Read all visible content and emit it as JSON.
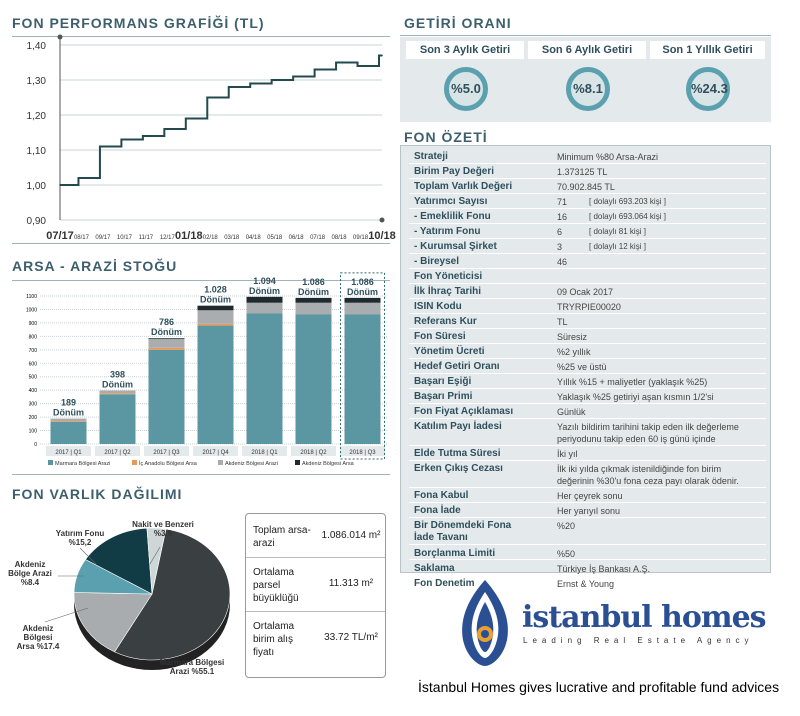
{
  "performance": {
    "title": "FON PERFORMANS GRAFİĞİ (TL)",
    "y_ticks": [
      "1,40",
      "1,30",
      "1,20",
      "1,10",
      "1,00",
      "0,90"
    ],
    "x_ticks": [
      {
        "label": "07/17",
        "big": true
      },
      {
        "label": "08/17",
        "big": false
      },
      {
        "label": "09/17",
        "big": false
      },
      {
        "label": "10/17",
        "big": false
      },
      {
        "label": "11/17",
        "big": false
      },
      {
        "label": "12/17",
        "big": false
      },
      {
        "label": "01/18",
        "big": true
      },
      {
        "label": "02/18",
        "big": false
      },
      {
        "label": "03/18",
        "big": false
      },
      {
        "label": "04/18",
        "big": false
      },
      {
        "label": "05/18",
        "big": false
      },
      {
        "label": "06/18",
        "big": false
      },
      {
        "label": "07/18",
        "big": false
      },
      {
        "label": "08/18",
        "big": false
      },
      {
        "label": "09/18",
        "big": false
      },
      {
        "label": "10/18",
        "big": true
      }
    ]
  },
  "chart_data": [
    {
      "type": "line",
      "title": "FON PERFORMANS GRAFİĞİ (TL)",
      "ylim": [
        0.9,
        1.4
      ],
      "x": [
        "07/17",
        "08/17",
        "09/17",
        "10/17",
        "11/17",
        "12/17",
        "01/18",
        "02/18",
        "03/18",
        "04/18",
        "05/18",
        "06/18",
        "07/18",
        "08/18",
        "09/18",
        "10/18"
      ],
      "y": [
        1.0,
        1.02,
        1.11,
        1.13,
        1.14,
        1.16,
        1.19,
        1.25,
        1.28,
        1.29,
        1.3,
        1.31,
        1.33,
        1.35,
        1.34,
        1.37
      ]
    },
    {
      "type": "bar",
      "title": "ARSA - ARAZİ STOĞU",
      "categories": [
        "2017 | Q1",
        "2017 | Q2",
        "2017 | Q3",
        "2017 | Q4",
        "2018 | Q1",
        "2018 | Q2",
        "2018 | Q3"
      ],
      "top_labels": [
        "189",
        "398",
        "786",
        "1.028",
        "1.094",
        "1.086",
        "1.086"
      ],
      "unit": "Dönüm",
      "y_ticks": [
        "1100",
        "1000",
        "900",
        "800",
        "700",
        "600",
        "500",
        "400",
        "300",
        "200",
        "100",
        "0"
      ],
      "ylim": [
        0,
        1100
      ],
      "series": [
        {
          "name": "Marmara Bölgesi Arazi",
          "color": "#5b97a3",
          "values": [
            165,
            370,
            700,
            880,
            970,
            965,
            965
          ]
        },
        {
          "name": "İç Anadolu Bölgesi Arsa",
          "color": "#e89a5a",
          "values": [
            6,
            8,
            15,
            14,
            0,
            0,
            0
          ]
        },
        {
          "name": "Akdeniz Bölgesi Arazi",
          "color": "#a9adaf",
          "values": [
            18,
            20,
            65,
            100,
            80,
            85,
            85
          ]
        },
        {
          "name": "Akdeniz Bölgesi Arsa",
          "color": "#1e2a2e",
          "values": [
            0,
            0,
            6,
            34,
            44,
            36,
            36
          ]
        }
      ]
    },
    {
      "type": "pie",
      "title": "FON VARLIK DAĞILIMI",
      "slices": [
        {
          "label": "Marmara Bölgesi Arazi %55.1",
          "value": 55.1,
          "color": "#3a3f42"
        },
        {
          "label": "Akdeniz Bölgesi Arsa %17.4",
          "value": 17.4,
          "color": "#a8acae"
        },
        {
          "label": "Akdeniz Bölge Arazi %8.4",
          "value": 8.4,
          "color": "#5aa0ae"
        },
        {
          "label": "Yatırım Fonu %15.2",
          "value": 15.2,
          "color": "#123c45"
        },
        {
          "label": "Nakit ve Benzeri %3.9",
          "value": 3.9,
          "color": "#cfd6d8"
        }
      ]
    }
  ],
  "stock": {
    "title": "ARSA - ARAZİ STOĞU",
    "legend": [
      "Marmara Bölgesi Arazi",
      "İç Anadolu Bölgesi Arsa",
      "Akdeniz Bölgesi Arazi",
      "Akdeniz Bölgesi Arsa"
    ]
  },
  "varlik": {
    "title": "FON VARLIK DAĞILIMI",
    "labels": {
      "yatirim": [
        "Yatırım Fonu",
        "%15,2"
      ],
      "nakit": [
        "Nakit ve Benzeri",
        "%3.9"
      ],
      "akdeniz_arazi": [
        "Akdeniz",
        "Bölge Arazi",
        "%8.4"
      ],
      "akdeniz_arsa": [
        "Akdeniz",
        "Bölgesi",
        "Arsa %17.4"
      ],
      "marmara": [
        "Marmara Bölgesi",
        "Arazi %55.1"
      ]
    },
    "info": [
      {
        "k": "Toplam arsa-arazi",
        "v": "1.086.014 m²"
      },
      {
        "k": "Ortalama parsel büyüklüğü",
        "v": "11.313 m²"
      },
      {
        "k": "Ortalama birim alış fiyatı",
        "v": "33.72 TL/m²"
      }
    ]
  },
  "getiri": {
    "title": "GETİRİ ORANI",
    "items": [
      {
        "label": "Son 3 Aylık Getiri",
        "value": "%5.0"
      },
      {
        "label": "Son 6 Aylık Getiri",
        "value": "%8.1"
      },
      {
        "label": "Son 1 Yıllık Getiri",
        "value": "%24.3"
      }
    ]
  },
  "ozet": {
    "title": "FON ÖZETİ",
    "rows": [
      {
        "k": "Strateji",
        "v": "Minimum %80 Arsa-Arazi"
      },
      {
        "k": "Birim Pay Değeri",
        "v": "1.373125 TL"
      },
      {
        "k": "Toplam Varlık Değeri",
        "v": "70.902.845 TL"
      },
      {
        "k": "Yatırımcı Sayısı",
        "v": "71",
        "v2": "[ dolaylı 693.203 kişi ]"
      },
      {
        "k": "  - Emeklilik Fonu",
        "v": "16",
        "v2": "[ dolaylı 693.064 kişi ]"
      },
      {
        "k": "  - Yatırım Fonu",
        "v": "6",
        "v2": "[ dolaylı 81 kişi ]"
      },
      {
        "k": "  - Kurumsal Şirket",
        "v": "3",
        "v2": "[ dolaylı 12 kişi ]"
      },
      {
        "k": "  - Bireysel",
        "v": "46"
      },
      {
        "k": "Fon Yöneticisi",
        "v": ""
      },
      {
        "k": "İlk İhraç Tarihi",
        "v": "09 Ocak 2017"
      },
      {
        "k": "ISIN Kodu",
        "v": "TRYRPIE00020"
      },
      {
        "k": "Referans Kur",
        "v": "TL"
      },
      {
        "k": "Fon Süresi",
        "v": "Süresiz"
      },
      {
        "k": "Yönetim Ücreti",
        "v": "%2 yıllık"
      },
      {
        "k": "Hedef Getiri Oranı",
        "v": "%25 ve üstü"
      },
      {
        "k": "Başarı Eşiği",
        "v": "Yıllık %15 + maliyetler (yaklaşık %25)"
      },
      {
        "k": "Başarı Primi",
        "v": "Yaklaşık %25 getiriyi aşan kısmın 1/2'si"
      },
      {
        "k": "Fon Fiyat Açıklaması",
        "v": "Günlük"
      },
      {
        "k": "Katılım Payı İadesi",
        "v": "Yazılı bildirim tarihini takip eden ilk değerleme",
        "v_b": "periyodunu  takip eden 60 iş günü içinde"
      },
      {
        "k": "Elde Tutma Süresi",
        "v": "İki yıl"
      },
      {
        "k": "Erken Çıkış Cezası",
        "v": "İlk iki yılda çıkmak istenildiğinde fon birim",
        "v_b": "değerinin %30'u fona  ceza payı olarak ödenir."
      },
      {
        "k": "Fona Kabul",
        "v": "Her çeyrek sonu"
      },
      {
        "k": "Fona İade",
        "v": "Her yarıyıl sonu"
      },
      {
        "k": "Bir Dönemdeki Fona",
        "v": "%20",
        "k_b": "İade Tavanı"
      },
      {
        "k": "Borçlanma Limiti",
        "v": "%50"
      },
      {
        "k": "Saklama",
        "v": "Türkiye İş Bankası A.Ş."
      },
      {
        "k": "Fon Denetim",
        "v": "Ernst & Young"
      }
    ]
  },
  "brand": {
    "name": "istanbul homes",
    "tagline": "Leading Real Estate Agency",
    "caption": "İstanbul Homes gives lucrative and profitable fund advices"
  }
}
